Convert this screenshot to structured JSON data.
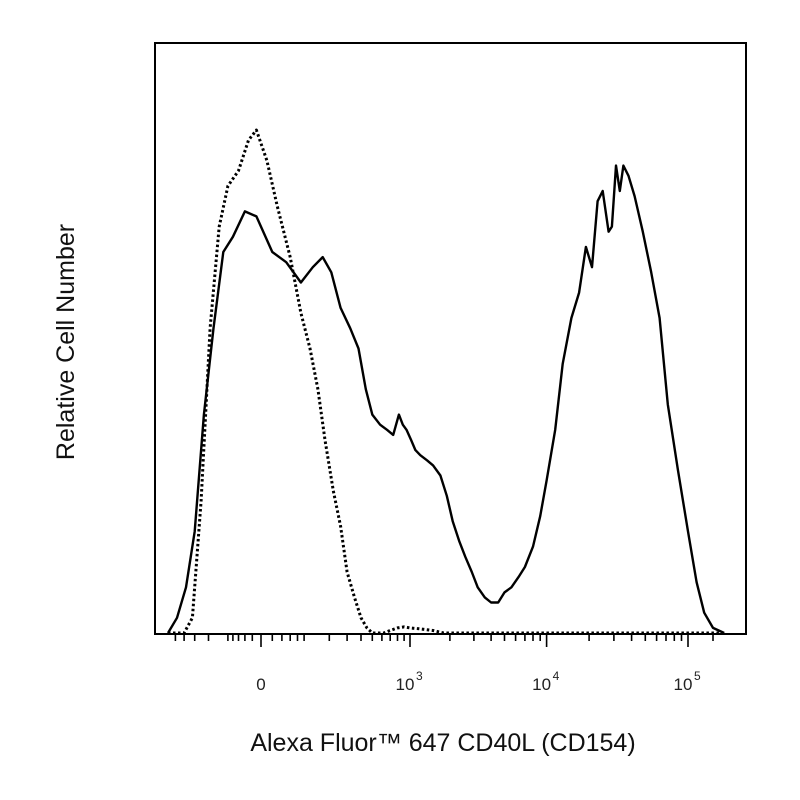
{
  "chart_data": {
    "type": "line",
    "title": "",
    "xlabel": "Alexa Fluor™ 647 CD40L (CD154)",
    "ylabel": "Relative Cell Number",
    "x_scale": "biexponential",
    "xlim": [
      -600,
      180000
    ],
    "ylim": [
      0,
      1.0
    ],
    "grid": false,
    "legend": "none",
    "x_tick_labels": [
      {
        "value": 0,
        "base": "0",
        "exp": ""
      },
      {
        "value": 1000,
        "base": "10",
        "exp": "3"
      },
      {
        "value": 10000,
        "base": "10",
        "exp": "4"
      },
      {
        "value": 100000,
        "base": "10",
        "exp": "5"
      }
    ],
    "series": [
      {
        "style": "solid",
        "color": "#000000",
        "x": [
          -600,
          -480,
          -380,
          -300,
          -230,
          -170,
          -120,
          -80,
          -40,
          -10,
          20,
          50,
          90,
          130,
          170,
          210,
          260,
          320,
          380,
          440,
          500,
          580,
          660,
          740,
          820,
          880,
          940,
          1020,
          1100,
          1200,
          1350,
          1500,
          1700,
          1900,
          2100,
          2350,
          2600,
          2900,
          3200,
          3600,
          4000,
          4500,
          5000,
          5600,
          6300,
          7000,
          8000,
          9000,
          10000,
          11500,
          13000,
          15000,
          17000,
          19000,
          21000,
          23000,
          25000,
          27500,
          29000,
          31000,
          33000,
          35000,
          38000,
          42000,
          48000,
          55000,
          63000,
          72000,
          85000,
          100000,
          115000,
          130000,
          150000,
          180000
        ],
        "y": [
          0.0,
          0.03,
          0.09,
          0.2,
          0.43,
          0.6,
          0.75,
          0.78,
          0.83,
          0.82,
          0.75,
          0.73,
          0.69,
          0.72,
          0.74,
          0.71,
          0.64,
          0.6,
          0.56,
          0.48,
          0.43,
          0.41,
          0.4,
          0.39,
          0.43,
          0.41,
          0.4,
          0.38,
          0.36,
          0.35,
          0.34,
          0.33,
          0.31,
          0.27,
          0.22,
          0.18,
          0.15,
          0.12,
          0.09,
          0.07,
          0.06,
          0.06,
          0.08,
          0.09,
          0.11,
          0.13,
          0.17,
          0.23,
          0.3,
          0.4,
          0.53,
          0.62,
          0.67,
          0.76,
          0.72,
          0.85,
          0.87,
          0.79,
          0.8,
          0.92,
          0.87,
          0.92,
          0.9,
          0.86,
          0.79,
          0.71,
          0.62,
          0.45,
          0.32,
          0.2,
          0.1,
          0.04,
          0.01,
          0.0
        ]
      },
      {
        "style": "dotted",
        "color": "#000000",
        "x": [
          -600,
          -480,
          -400,
          -320,
          -250,
          -190,
          -140,
          -100,
          -60,
          -30,
          -10,
          10,
          30,
          60,
          90,
          120,
          150,
          180,
          220,
          260,
          300,
          350,
          400,
          450,
          500,
          560,
          620,
          700,
          800,
          900,
          1000,
          1200,
          1500,
          1800,
          2200,
          3000,
          10000,
          180000
        ],
        "y": [
          0.0,
          0.0,
          0.0,
          0.03,
          0.26,
          0.6,
          0.8,
          0.88,
          0.91,
          0.97,
          0.99,
          0.93,
          0.84,
          0.74,
          0.63,
          0.56,
          0.48,
          0.38,
          0.28,
          0.21,
          0.12,
          0.07,
          0.03,
          0.01,
          0.0,
          0.0,
          0.0,
          0.005,
          0.01,
          0.012,
          0.01,
          0.008,
          0.005,
          0.0,
          0.0,
          0.0,
          0.0,
          0.0
        ]
      }
    ]
  }
}
